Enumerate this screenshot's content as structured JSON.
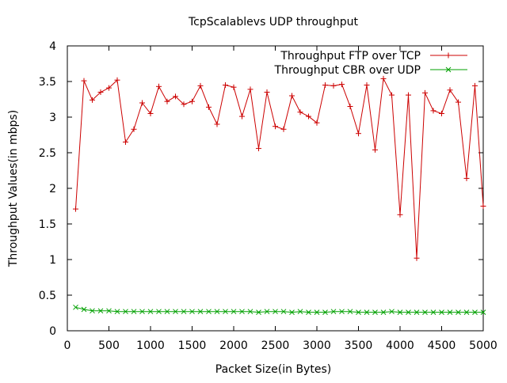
{
  "chart_data": {
    "type": "line",
    "title": "TcpScalablevs UDP throughput",
    "xlabel": "Packet Size(in Bytes)",
    "ylabel": "Throughput Values(in mbps)",
    "xlim": [
      0,
      5000
    ],
    "ylim": [
      0,
      4
    ],
    "x_ticks": [
      "0",
      "500",
      "1000",
      "1500",
      "2000",
      "2500",
      "3000",
      "3500",
      "4000",
      "4500",
      "5000"
    ],
    "y_ticks": [
      "0",
      "0.5",
      "1",
      "1.5",
      "2",
      "2.5",
      "3",
      "3.5",
      "4"
    ],
    "grid": false,
    "legend_position": "top-right",
    "x": [
      100,
      200,
      300,
      400,
      500,
      600,
      700,
      800,
      900,
      1000,
      1100,
      1200,
      1300,
      1400,
      1500,
      1600,
      1700,
      1800,
      1900,
      2000,
      2100,
      2200,
      2300,
      2400,
      2500,
      2600,
      2700,
      2800,
      2900,
      3000,
      3100,
      3200,
      3300,
      3400,
      3500,
      3600,
      3700,
      3800,
      3900,
      4000,
      4100,
      4200,
      4300,
      4400,
      4500,
      4600,
      4700,
      4800,
      4900,
      5000
    ],
    "series": [
      {
        "name": "Throughput FTP over TCP",
        "color": "#cc0000",
        "marker": "plus",
        "values": [
          1.71,
          3.51,
          3.24,
          3.35,
          3.41,
          3.52,
          2.65,
          2.83,
          3.2,
          3.05,
          3.43,
          3.22,
          3.29,
          3.18,
          3.22,
          3.44,
          3.14,
          2.9,
          3.45,
          3.42,
          3.01,
          3.39,
          2.56,
          3.35,
          2.87,
          2.83,
          3.3,
          3.07,
          3.01,
          2.92,
          3.45,
          3.44,
          3.46,
          3.15,
          2.77,
          3.45,
          2.54,
          3.54,
          3.31,
          1.63,
          3.31,
          1.02,
          3.34,
          3.09,
          3.05,
          3.38,
          3.21,
          2.14,
          3.44,
          1.75
        ]
      },
      {
        "name": "Throughput CBR over UDP",
        "color": "#00a000",
        "marker": "x",
        "values": [
          0.33,
          0.3,
          0.28,
          0.28,
          0.28,
          0.27,
          0.27,
          0.27,
          0.27,
          0.27,
          0.27,
          0.27,
          0.27,
          0.27,
          0.27,
          0.27,
          0.27,
          0.27,
          0.27,
          0.27,
          0.27,
          0.27,
          0.26,
          0.27,
          0.27,
          0.27,
          0.26,
          0.27,
          0.26,
          0.26,
          0.26,
          0.27,
          0.27,
          0.27,
          0.26,
          0.26,
          0.26,
          0.26,
          0.27,
          0.26,
          0.26,
          0.26,
          0.26,
          0.26,
          0.26,
          0.26,
          0.26,
          0.26,
          0.26,
          0.26
        ]
      }
    ]
  }
}
